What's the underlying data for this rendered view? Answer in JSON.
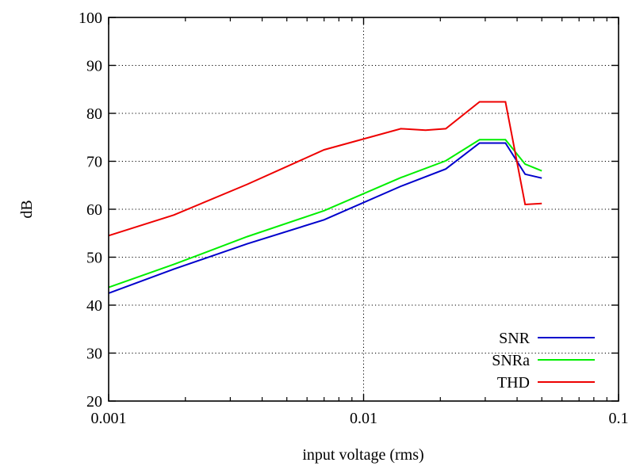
{
  "chart_data": {
    "type": "line",
    "title": "",
    "xlabel": "input voltage (rms)",
    "ylabel": "dB",
    "xscale": "log",
    "xlim": [
      0.001,
      0.1
    ],
    "ylim": [
      20,
      100
    ],
    "xticks": [
      {
        "value": 0.001,
        "label": "0.001"
      },
      {
        "value": 0.01,
        "label": "0.01"
      },
      {
        "value": 0.1,
        "label": "0.1"
      }
    ],
    "yticks": [
      {
        "value": 20,
        "label": "20"
      },
      {
        "value": 30,
        "label": "30"
      },
      {
        "value": 40,
        "label": "40"
      },
      {
        "value": 50,
        "label": "50"
      },
      {
        "value": 60,
        "label": "60"
      },
      {
        "value": 70,
        "label": "70"
      },
      {
        "value": 80,
        "label": "80"
      },
      {
        "value": 90,
        "label": "90"
      },
      {
        "value": 100,
        "label": "100"
      }
    ],
    "grid": true,
    "legend_position": "bottom-right",
    "series": [
      {
        "name": "SNR",
        "color": "#0000cc",
        "points": [
          [
            0.001,
            42.5
          ],
          [
            0.0018,
            47.5
          ],
          [
            0.0035,
            52.8
          ],
          [
            0.007,
            57.8
          ],
          [
            0.014,
            64.8
          ],
          [
            0.021,
            68.4
          ],
          [
            0.0285,
            73.8
          ],
          [
            0.036,
            73.8
          ],
          [
            0.043,
            67.3
          ],
          [
            0.05,
            66.5
          ]
        ]
      },
      {
        "name": "SNRa",
        "color": "#00ee00",
        "points": [
          [
            0.001,
            43.7
          ],
          [
            0.0018,
            48.5
          ],
          [
            0.0035,
            54.3
          ],
          [
            0.007,
            59.7
          ],
          [
            0.014,
            66.6
          ],
          [
            0.021,
            70.1
          ],
          [
            0.0285,
            74.5
          ],
          [
            0.036,
            74.5
          ],
          [
            0.043,
            69.4
          ],
          [
            0.05,
            68.0
          ]
        ]
      },
      {
        "name": "THD",
        "color": "#ee0000",
        "points": [
          [
            0.001,
            54.5
          ],
          [
            0.0018,
            58.8
          ],
          [
            0.0035,
            65.2
          ],
          [
            0.007,
            72.4
          ],
          [
            0.014,
            76.8
          ],
          [
            0.0175,
            76.5
          ],
          [
            0.021,
            76.8
          ],
          [
            0.0285,
            82.4
          ],
          [
            0.036,
            82.4
          ],
          [
            0.043,
            61.0
          ],
          [
            0.05,
            61.2
          ]
        ]
      }
    ]
  }
}
